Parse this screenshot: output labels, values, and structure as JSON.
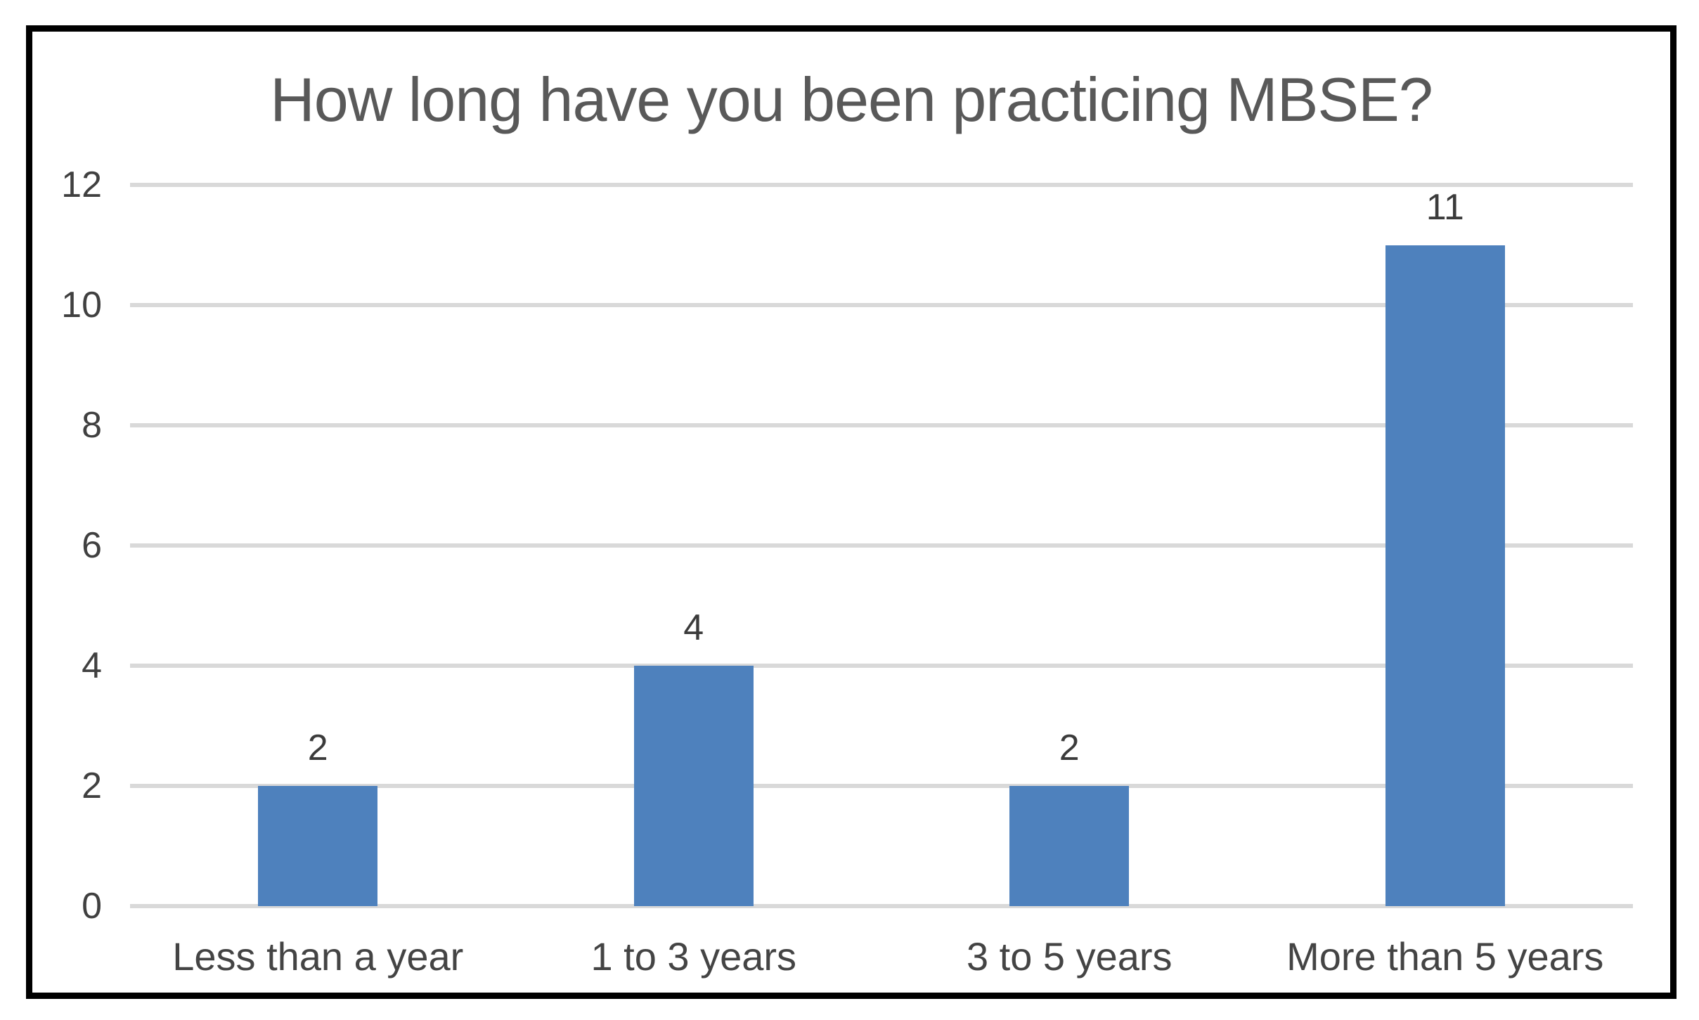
{
  "title": "How long have you been practicing MBSE?",
  "chart_data": {
    "type": "bar",
    "title": "How long have you been practicing MBSE?",
    "categories": [
      "Less than a year",
      "1 to 3 years",
      "3 to 5 years",
      "More than 5 years"
    ],
    "values": [
      2,
      4,
      2,
      11
    ],
    "data_labels": [
      "2",
      "4",
      "2",
      "11"
    ],
    "xlabel": "",
    "ylabel": "",
    "ylim": [
      0,
      12
    ],
    "yticks": [
      0,
      2,
      4,
      6,
      8,
      10,
      12
    ],
    "grid": true,
    "legend": false,
    "bar_color": "#4E81BD",
    "gridline_color": "#D9D9D9",
    "title_color": "#595959",
    "tick_label_color": "#404040",
    "data_label_color": "#3b3b3b",
    "category_label_color": "#444444",
    "border_color": "#000000"
  }
}
